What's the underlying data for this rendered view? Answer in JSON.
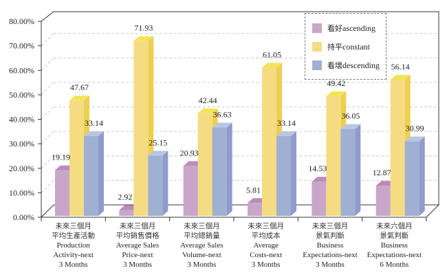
{
  "chart_data": {
    "type": "bar",
    "style": "3d-clustered",
    "title": "",
    "xlabel": "",
    "ylabel": "",
    "ylim": [
      0,
      80
    ],
    "y_ticks": [
      "0.00%",
      "10.00%",
      "20.00%",
      "30.00%",
      "40.00%",
      "50.00%",
      "60.00%",
      "70.00%",
      "80.00%"
    ],
    "y_tick_values": [
      0,
      10,
      20,
      30,
      40,
      50,
      60,
      70,
      80
    ],
    "grid": true,
    "legend_position": "top-right",
    "categories": [
      {
        "zh1": "未來三個月",
        "zh2": "平均生產活動",
        "en": [
          "Production",
          "Activity-next",
          "3 Months"
        ]
      },
      {
        "zh1": "未來三個月",
        "zh2": "平均銷售價格",
        "en": [
          "Average Sales",
          "Price-next",
          "3 Months"
        ]
      },
      {
        "zh1": "未來三個月",
        "zh2": "平均總銷量",
        "en": [
          "Average Sales",
          "Volume-next",
          "3 Months"
        ]
      },
      {
        "zh1": "未來三個月",
        "zh2": "平均成本",
        "en": [
          "Average",
          "Costs-next",
          "3 Months"
        ]
      },
      {
        "zh1": "未來三個月",
        "zh2": "景氣判斷",
        "en": [
          "Business",
          "Expectations-next",
          "3 Months"
        ]
      },
      {
        "zh1": "未來六個月",
        "zh2": "景氣判斷",
        "en": [
          "Business",
          "Expectations-next",
          "6 Months"
        ]
      }
    ],
    "series": [
      {
        "name": "看好ascending",
        "zh": "看好",
        "en": "ascending",
        "color": "#c8a6c9",
        "top": "#b98cba",
        "side": "#b58fb6",
        "values": [
          19.19,
          2.92,
          20.93,
          5.81,
          14.53,
          12.87
        ],
        "labels": [
          "19.19",
          "2.92",
          "20.93",
          "5.81",
          "14.53",
          "12.87"
        ]
      },
      {
        "name": "持平constant",
        "zh": "持平",
        "en": "constant",
        "color": "#f5dc82",
        "top": "#f2e45a",
        "side": "#efcf50",
        "values": [
          47.67,
          71.93,
          42.44,
          61.05,
          49.42,
          56.14
        ],
        "labels": [
          "47.67",
          "71.93",
          "42.44",
          "61.05",
          "49.42",
          "56.14"
        ]
      },
      {
        "name": "看壞descending",
        "zh": "看壞",
        "en": "descending",
        "color": "#9fb0d2",
        "top": "#b8c6e2",
        "side": "#8e9bcc",
        "values": [
          33.14,
          25.15,
          36.63,
          33.14,
          36.05,
          30.99
        ],
        "labels": [
          "33.14",
          "25.15",
          "36.63",
          "33.14",
          "36.05",
          "30.99"
        ]
      }
    ]
  }
}
